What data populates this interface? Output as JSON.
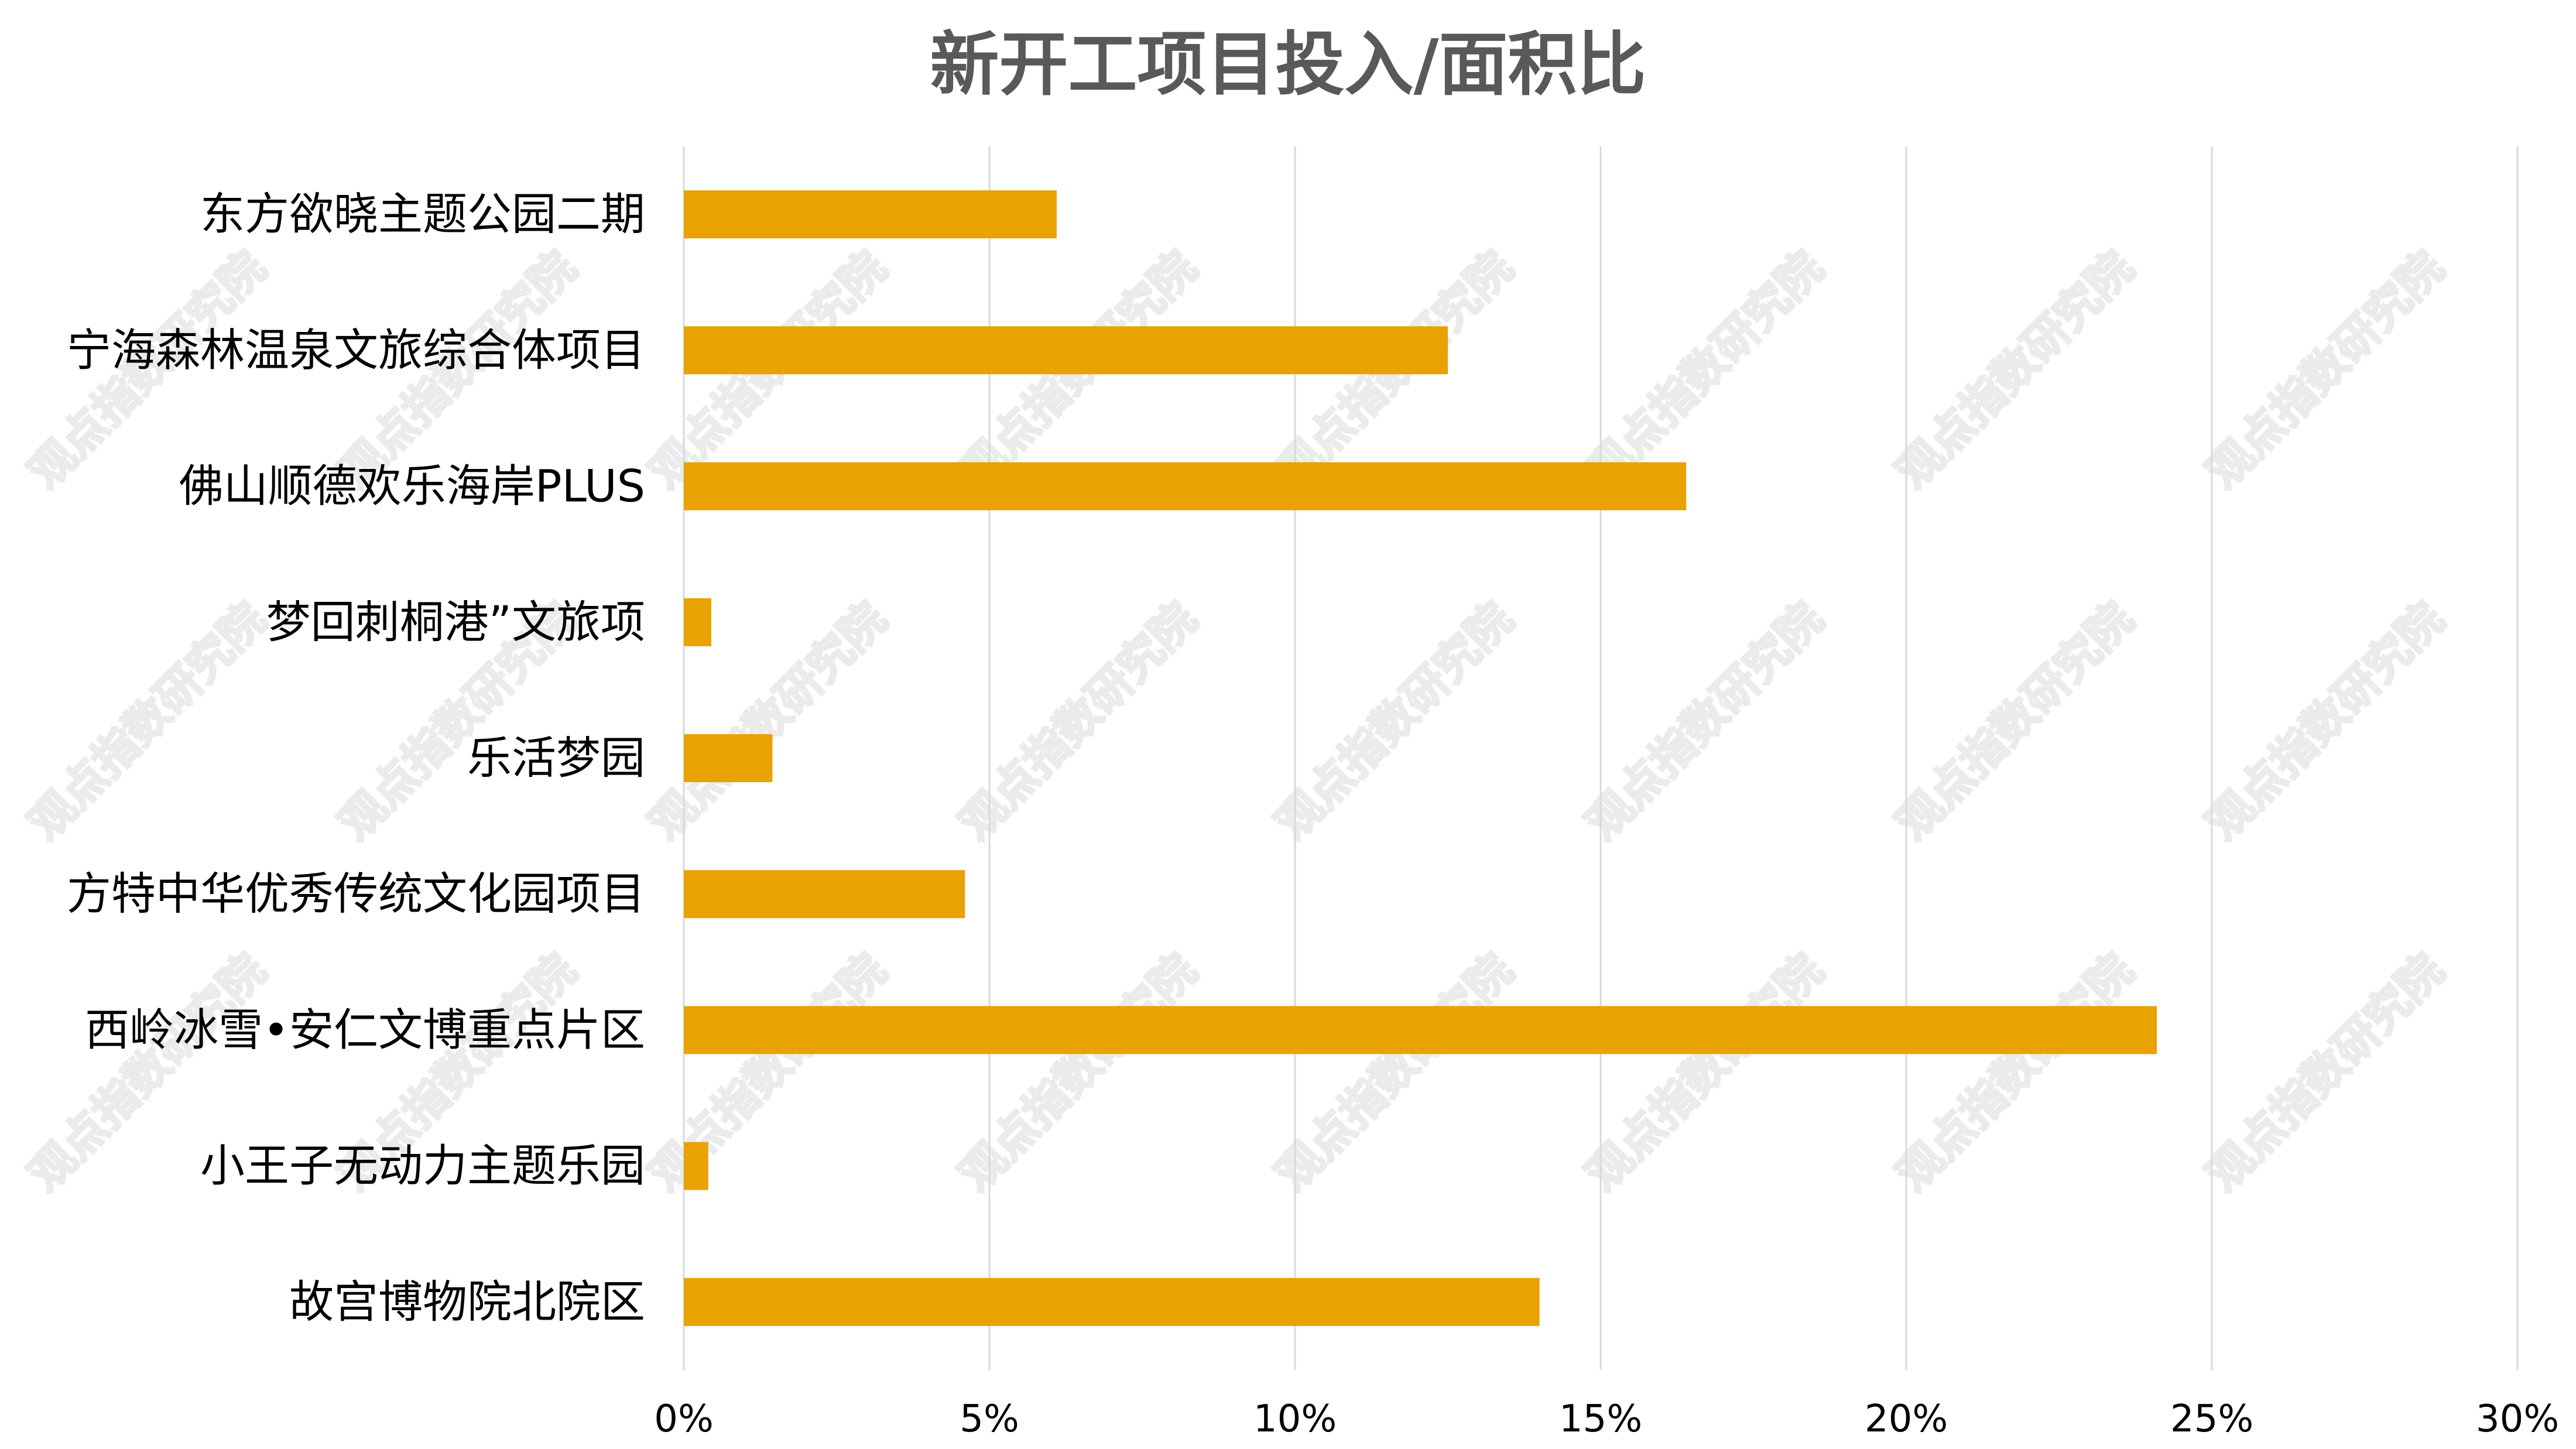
{
  "chart_data": {
    "type": "bar",
    "orientation": "horizontal",
    "title": "新开工项目投入/面积比",
    "categories": [
      "东方欲晓主题公园二期",
      "宁海森林温泉文旅综合体项目",
      "佛山顺德欢乐海岸PLUS",
      "梦回刺桐港”文旅项",
      "乐活梦园",
      "方特中华优秀传统文化园项目",
      "西岭冰雪•安仁文博重点片区",
      "小王子无动力主题乐园",
      "故宫博物院北院区"
    ],
    "values": [
      6.1,
      12.5,
      16.4,
      0.45,
      1.45,
      4.6,
      24.1,
      0.4,
      14.0
    ],
    "value_unit": "%",
    "xlim": [
      0,
      30
    ],
    "xticks": [
      "0%",
      "5%",
      "10%",
      "15%",
      "20%",
      "25%",
      "30%"
    ],
    "xlabel": "",
    "ylabel": "",
    "grid": "vertical",
    "legend": "none",
    "bar_color": "#E8A202",
    "grid_color": "#D9D9D9",
    "label_color": "#000000",
    "title_color": "#595959"
  },
  "watermark": "观点指数研究院"
}
